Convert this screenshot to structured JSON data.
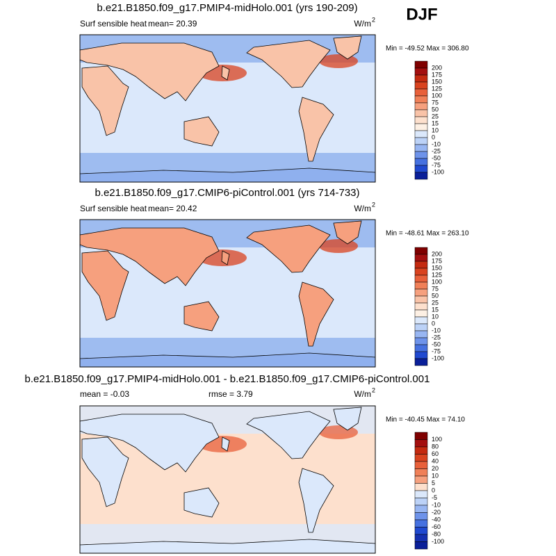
{
  "header": {
    "season": "DJF"
  },
  "panels": [
    {
      "title": "b.e21.B1850.f09_g17.PMIP4-midHolo.001 (yrs 190-209)",
      "left_label": "Surf sensible heat",
      "center_label": "mean=  20.39",
      "units": "W/m",
      "units_exp": "2",
      "minmax": "Min = -49.52 Max = 306.80",
      "colorbar": {
        "levels": [
          200,
          175,
          150,
          125,
          100,
          75,
          50,
          25,
          15,
          10,
          0,
          -10,
          -25,
          -50,
          -75,
          -100
        ],
        "colors": [
          "#7f0000",
          "#a30f0f",
          "#c42a10",
          "#d9431f",
          "#e8603a",
          "#f08058",
          "#f6a07e",
          "#f9c3a8",
          "#fde0cd",
          "#fdf0e4",
          "#dbe8fb",
          "#bcd2f7",
          "#98b6f2",
          "#6e93ea",
          "#4671e0",
          "#2049d0",
          "#0a1f99"
        ]
      }
    },
    {
      "title": "b.e21.B1850.f09_g17.CMIP6-piControl.001 (yrs 714-733)",
      "left_label": "Surf sensible heat",
      "center_label": "mean=  20.42",
      "units": "W/m",
      "units_exp": "2",
      "minmax": "Min = -48.61 Max = 263.10",
      "colorbar": {
        "levels": [
          200,
          175,
          150,
          125,
          100,
          75,
          50,
          25,
          15,
          10,
          0,
          -10,
          -25,
          -50,
          -75,
          -100
        ],
        "colors": [
          "#7f0000",
          "#a30f0f",
          "#c42a10",
          "#d9431f",
          "#e8603a",
          "#f08058",
          "#f6a07e",
          "#f9c3a8",
          "#fde0cd",
          "#fdf0e4",
          "#dbe8fb",
          "#bcd2f7",
          "#98b6f2",
          "#6e93ea",
          "#4671e0",
          "#2049d0",
          "#0a1f99"
        ]
      }
    },
    {
      "title": "b.e21.B1850.f09_g17.PMIP4-midHolo.001 - b.e21.B1850.f09_g17.CMIP6-piControl.001",
      "left_label": "mean =  -0.03",
      "center_label": "rmse =   3.79",
      "units": "W/m",
      "units_exp": "2",
      "minmax": "Min = -40.45 Max =  74.10",
      "colorbar": {
        "levels": [
          100,
          80,
          60,
          40,
          20,
          10,
          5,
          0,
          -5,
          -10,
          -20,
          -40,
          -60,
          -80,
          -100
        ],
        "colors": [
          "#7f0000",
          "#a30f0f",
          "#c42a10",
          "#d9431f",
          "#e8603a",
          "#f08058",
          "#f6a07e",
          "#fde0cd",
          "#dbe8fb",
          "#bcd2f7",
          "#98b6f2",
          "#6e93ea",
          "#4671e0",
          "#2049d0",
          "#1530b0",
          "#0a1f99"
        ]
      }
    }
  ]
}
